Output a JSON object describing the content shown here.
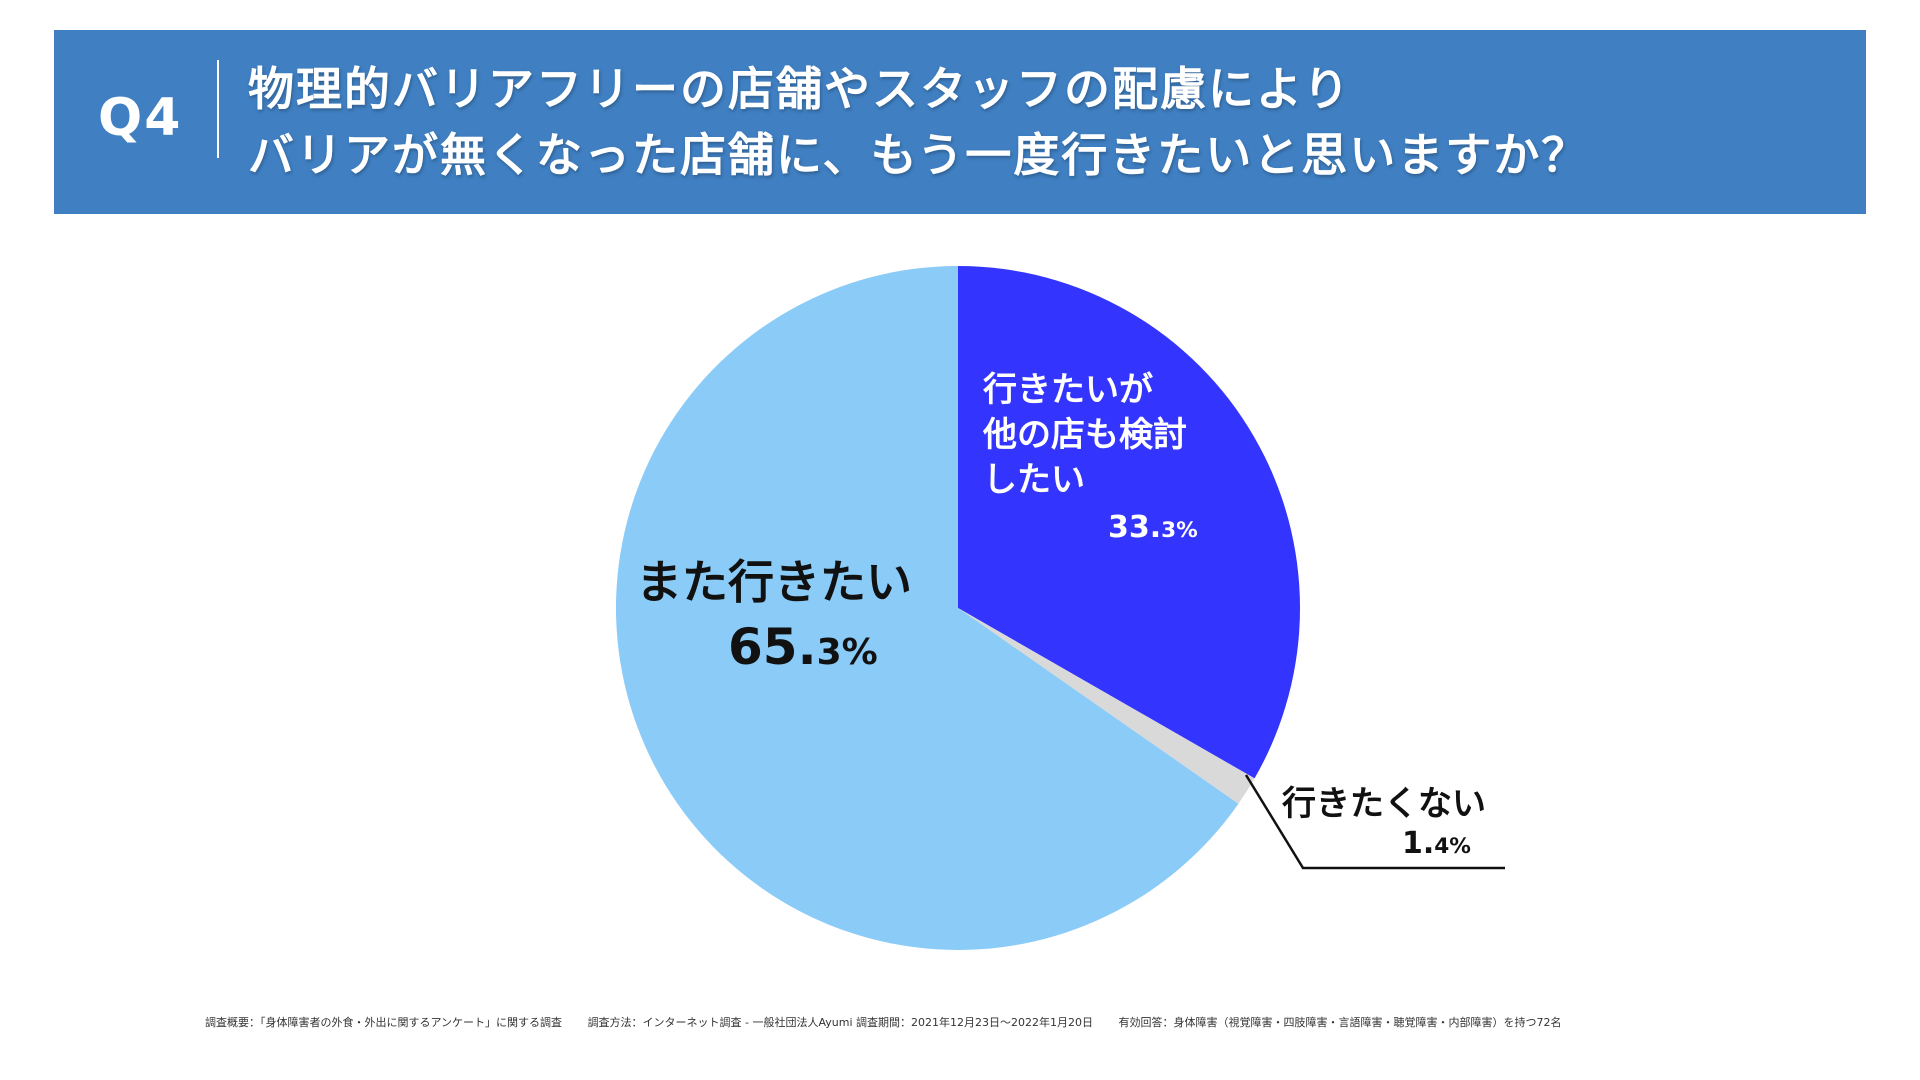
{
  "header": {
    "question_number": "Q4",
    "title_line1": "物理的バリアフリーの店舗やスタッフの配慮により",
    "title_line2": "バリアが無くなった店舗に、もう一度行きたいと思いますか？"
  },
  "colors": {
    "banner": "#3f7fc2",
    "slice_return": "#8acbf8",
    "slice_other": "#3434ff",
    "slice_no": "#d9d9d9",
    "leader_line": "#111111"
  },
  "chart_data": {
    "type": "pie",
    "start_angle_deg": 0,
    "direction": "clockwise",
    "slices": [
      {
        "label": "行きたいが他の店も検討したい",
        "value": 33.3,
        "value_text": "33.3%"
      },
      {
        "label": "行きたくない",
        "value": 1.4,
        "value_text": "1.4%"
      },
      {
        "label": "また行きたい",
        "value": 65.3,
        "value_text": "65.3%"
      }
    ]
  },
  "labels": {
    "other_line1": "行きたいが",
    "other_line2": "他の店も検討",
    "other_line3": "したい",
    "other_pct_int": "33.",
    "other_pct_dec": "3%",
    "no_name": "行きたくない",
    "no_pct_int": "1.",
    "no_pct_dec": "4%",
    "return_name": "また行きたい",
    "return_pct_int": "65.",
    "return_pct_dec": "3%"
  },
  "footer": {
    "overview": "調査概要：「身体障害者の外食・外出に関するアンケート」に関する調査",
    "method": "調査方法：インターネット調査 - 一般社団法人Ayumi 調査期間：2021年12月23日～2022年1月20日",
    "respondents": "有効回答：身体障害（視覚障害・四肢障害・言語障害・聴覚障害・内部障害）を持つ72名"
  }
}
